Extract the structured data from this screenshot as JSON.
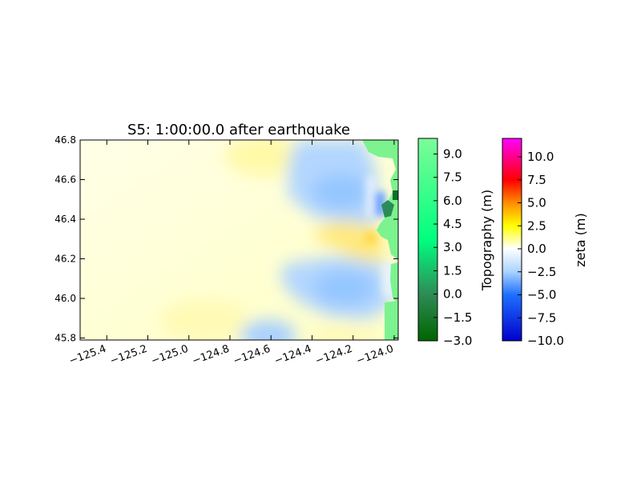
{
  "chart_data": [
    {
      "type": "heatmap",
      "title": "S5: 1:00:00.0 after earthquake",
      "xlabel": "",
      "ylabel": "",
      "xlim": [
        -125.53,
        -123.98
      ],
      "ylim": [
        45.79,
        46.8
      ],
      "x_ticks": [
        -125.4,
        -125.2,
        -125.0,
        -124.8,
        -124.6,
        -124.4,
        -124.2,
        -124.0
      ],
      "x_tick_labels": [
        "−125.4",
        "−125.2",
        "−125.0",
        "−124.8",
        "−124.6",
        "−124.4",
        "−124.2",
        "−124.0"
      ],
      "y_ticks": [
        45.8,
        46.0,
        46.2,
        46.4,
        46.6,
        46.8
      ],
      "y_tick_labels": [
        "45.8",
        "46.0",
        "46.2",
        "46.4",
        "46.6",
        "46.8"
      ],
      "grid": false,
      "field": "sea surface elevation (zeta) over ocean, topography over land",
      "features": [
        {
          "name": "offshore plateau",
          "zeta_m": 0.5
        },
        {
          "name": "negative lobe north",
          "center": [
            -124.28,
            46.55
          ],
          "zeta_m": -3.0
        },
        {
          "name": "positive band",
          "center": [
            -124.3,
            46.33
          ],
          "zeta_m": 2.0
        },
        {
          "name": "negative lobe south",
          "center": [
            -124.28,
            46.03
          ],
          "zeta_m": -3.0
        },
        {
          "name": "negative lobe bottom",
          "center": [
            -124.5,
            45.84
          ],
          "zeta_m": -2.0
        }
      ]
    },
    {
      "type": "colorbar",
      "label": "Topography (m)",
      "range": [
        -3.0,
        10.0
      ],
      "ticks": [
        9.0,
        7.5,
        6.0,
        4.5,
        3.0,
        1.5,
        0.0,
        -1.5,
        -3.0
      ],
      "tick_labels": [
        "9.0",
        "7.5",
        "6.0",
        "4.5",
        "3.0",
        "1.5",
        "0.0",
        "−1.5",
        "−3.0"
      ],
      "colors": [
        "#006400",
        "#2e8b57",
        "#00ff7f",
        "#7cfc98"
      ]
    },
    {
      "type": "colorbar",
      "label": "zeta (m)",
      "range": [
        -10.0,
        12.0
      ],
      "ticks": [
        10.0,
        7.5,
        5.0,
        2.5,
        0.0,
        -2.5,
        -5.0,
        -7.5,
        -10.0
      ],
      "tick_labels": [
        "10.0",
        "7.5",
        "5.0",
        "2.5",
        "0.0",
        "−2.5",
        "−5.0",
        "−7.5",
        "−10.0"
      ],
      "colors": [
        "#0000cd",
        "#1e6fff",
        "#aad2ff",
        "#ffffff",
        "#ffff00",
        "#ff8c00",
        "#ff0000",
        "#ff00ff"
      ]
    }
  ]
}
